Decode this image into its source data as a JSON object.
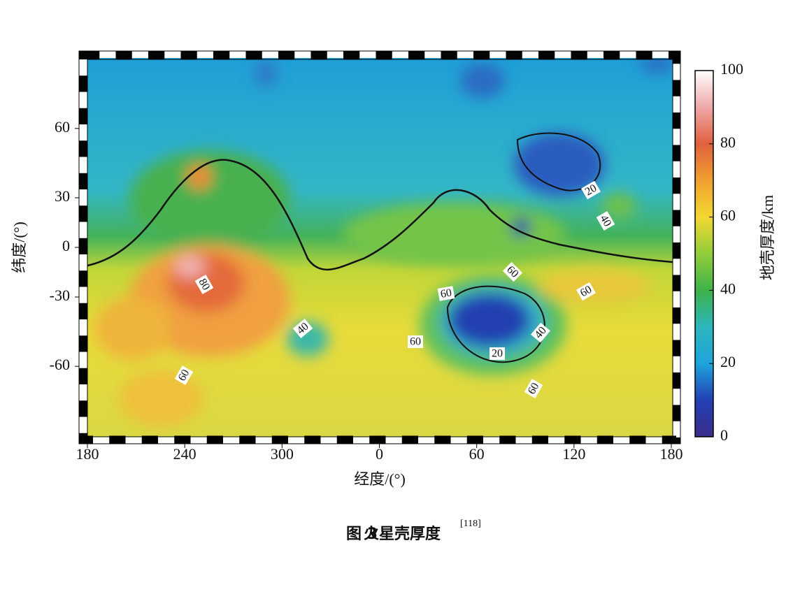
{
  "map": {
    "xlabel": "经度/(°)",
    "ylabel": "纬度/(°)",
    "xlim": [
      -180,
      180
    ],
    "xticks": [
      {
        "value": -180,
        "label": "180"
      },
      {
        "value": -120,
        "label": "240"
      },
      {
        "value": -60,
        "label": "300"
      },
      0,
      60,
      120,
      180
    ],
    "ylim": [
      -76,
      76
    ],
    "yticks": [
      60,
      30,
      0,
      -30,
      -60
    ],
    "contour_labels": [
      20,
      40,
      60,
      60,
      60,
      80,
      40,
      60,
      40,
      20,
      60,
      60
    ],
    "colorbar": {
      "label": "地壳厚度/km",
      "lim": [
        0,
        100
      ],
      "ticks": [
        0,
        20,
        40,
        60,
        80,
        100
      ]
    }
  },
  "caption": {
    "figure": "图 3",
    "title": "火星壳厚度",
    "ref": "[118]"
  }
}
